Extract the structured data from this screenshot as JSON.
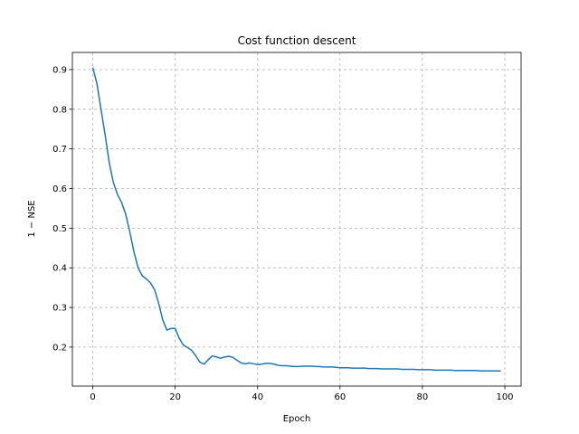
{
  "chart_data": {
    "type": "line",
    "title": "Cost function descent",
    "xlabel": "Epoch",
    "ylabel": "1 − NSE",
    "x": [
      0,
      1,
      2,
      3,
      4,
      5,
      6,
      7,
      8,
      9,
      10,
      11,
      12,
      13,
      14,
      15,
      16,
      17,
      18,
      19,
      20,
      21,
      22,
      23,
      24,
      25,
      26,
      27,
      28,
      29,
      30,
      31,
      32,
      33,
      34,
      35,
      36,
      37,
      38,
      39,
      40,
      41,
      42,
      43,
      44,
      45,
      46,
      47,
      48,
      49,
      50,
      51,
      52,
      53,
      54,
      55,
      56,
      57,
      58,
      59,
      60,
      61,
      62,
      63,
      64,
      65,
      66,
      67,
      68,
      69,
      70,
      71,
      72,
      73,
      74,
      75,
      76,
      77,
      78,
      79,
      80,
      81,
      82,
      83,
      84,
      85,
      86,
      87,
      88,
      89,
      90,
      91,
      92,
      93,
      94,
      95,
      96,
      97,
      98,
      99
    ],
    "values": [
      0.905,
      0.865,
      0.8,
      0.735,
      0.665,
      0.615,
      0.585,
      0.565,
      0.535,
      0.49,
      0.44,
      0.4,
      0.38,
      0.372,
      0.362,
      0.345,
      0.31,
      0.268,
      0.243,
      0.247,
      0.247,
      0.222,
      0.205,
      0.199,
      0.192,
      0.178,
      0.162,
      0.157,
      0.168,
      0.178,
      0.175,
      0.172,
      0.175,
      0.177,
      0.174,
      0.167,
      0.16,
      0.158,
      0.16,
      0.158,
      0.156,
      0.157,
      0.159,
      0.159,
      0.157,
      0.154,
      0.153,
      0.153,
      0.152,
      0.151,
      0.151,
      0.152,
      0.152,
      0.152,
      0.151,
      0.151,
      0.15,
      0.15,
      0.15,
      0.149,
      0.148,
      0.148,
      0.148,
      0.147,
      0.147,
      0.147,
      0.147,
      0.146,
      0.146,
      0.146,
      0.145,
      0.145,
      0.145,
      0.145,
      0.145,
      0.144,
      0.144,
      0.144,
      0.144,
      0.143,
      0.143,
      0.143,
      0.143,
      0.142,
      0.142,
      0.142,
      0.142,
      0.142,
      0.141,
      0.141,
      0.141,
      0.141,
      0.141,
      0.141,
      0.14,
      0.14,
      0.14,
      0.14,
      0.14,
      0.14
    ],
    "color": "#1f77b4",
    "xlim": [
      -4.95,
      103.95
    ],
    "xticks": [
      0,
      20,
      40,
      60,
      80,
      100
    ],
    "ylim": [
      0.1017,
      0.9433
    ],
    "yticks": [
      0.2,
      0.3,
      0.4,
      0.5,
      0.6,
      0.7,
      0.8,
      0.9
    ],
    "grid": true
  }
}
